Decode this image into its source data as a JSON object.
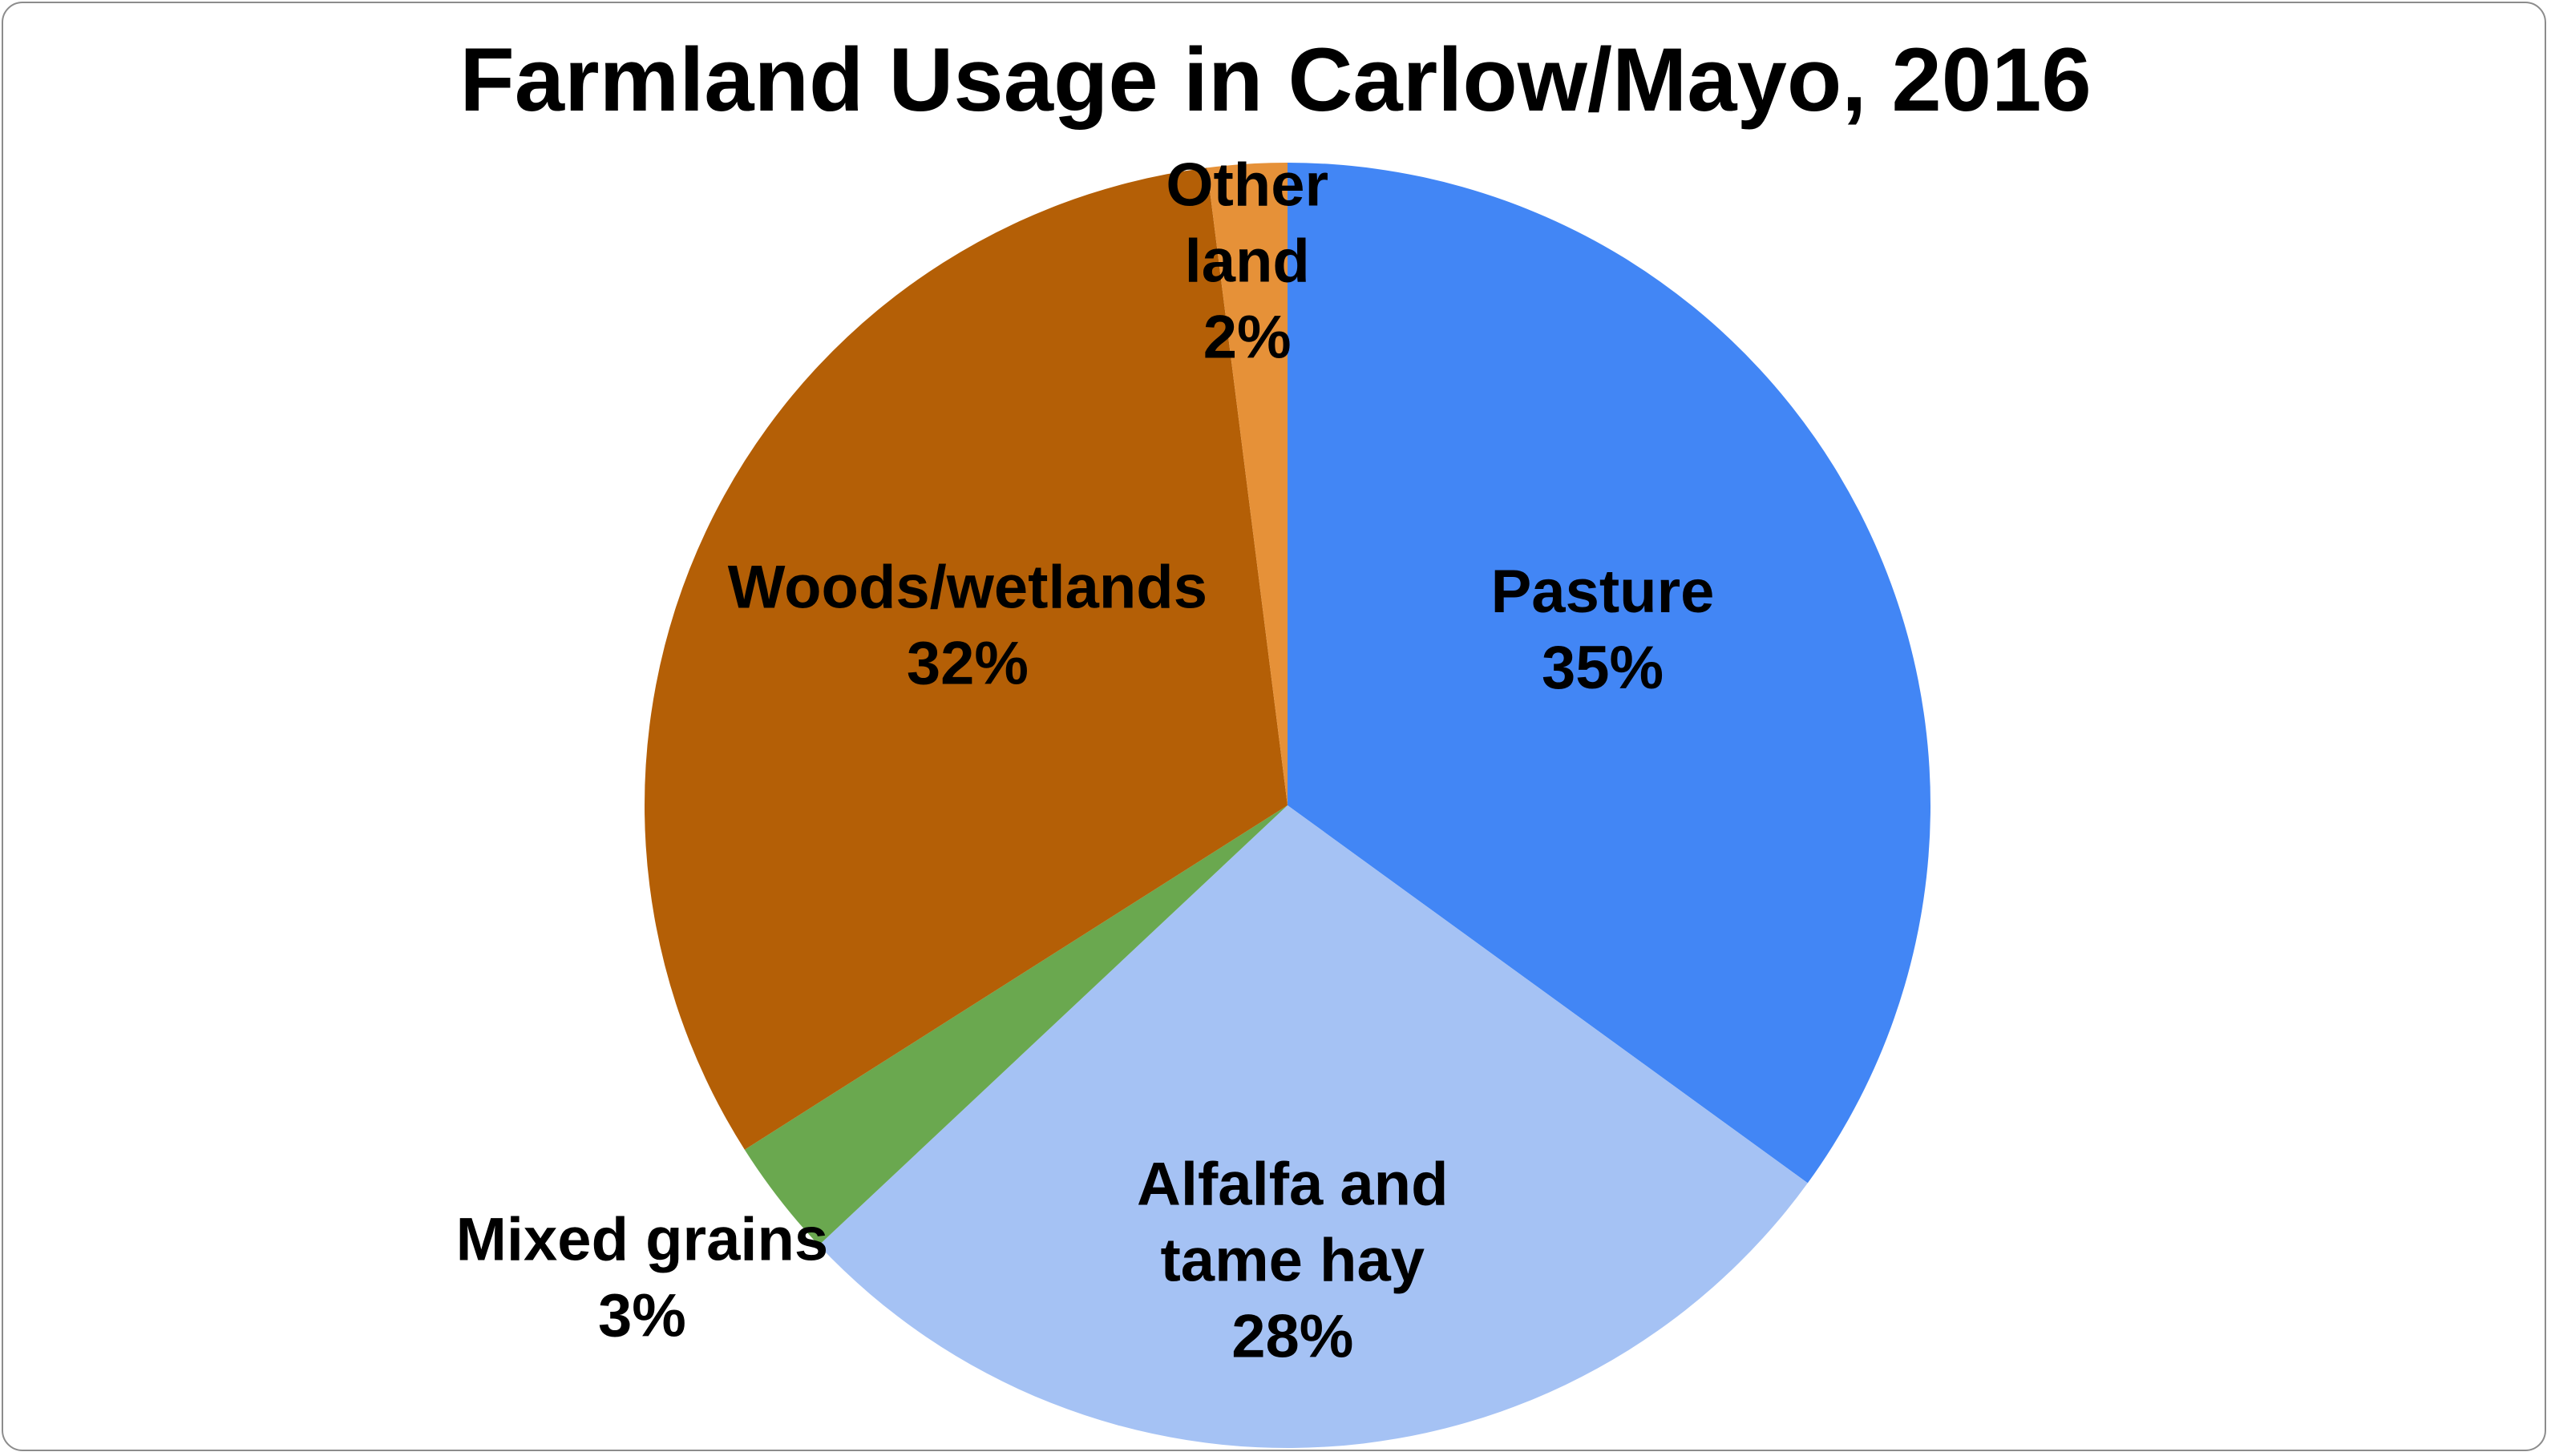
{
  "chart_data": {
    "type": "pie",
    "title": "Farmland Usage in Carlow/Mayo, 2016",
    "slices": [
      {
        "label": [
          "Pasture"
        ],
        "percent_label": "35%",
        "value": 35,
        "color": "#4286f5"
      },
      {
        "label": [
          "Alfalfa and",
          "tame hay"
        ],
        "percent_label": "28%",
        "value": 28,
        "color": "#a5c2f4"
      },
      {
        "label": [
          "Mixed grains"
        ],
        "percent_label": "3%",
        "value": 3,
        "color": "#6aa84f"
      },
      {
        "label": [
          "Woods/wetlands"
        ],
        "percent_label": "32%",
        "value": 32,
        "color": "#b45f06"
      },
      {
        "label": [
          "Other",
          "land"
        ],
        "percent_label": "2%",
        "value": 2,
        "color": "#e69138"
      }
    ],
    "start_angle": "12 o'clock",
    "direction": "clockwise",
    "legend": "none"
  }
}
